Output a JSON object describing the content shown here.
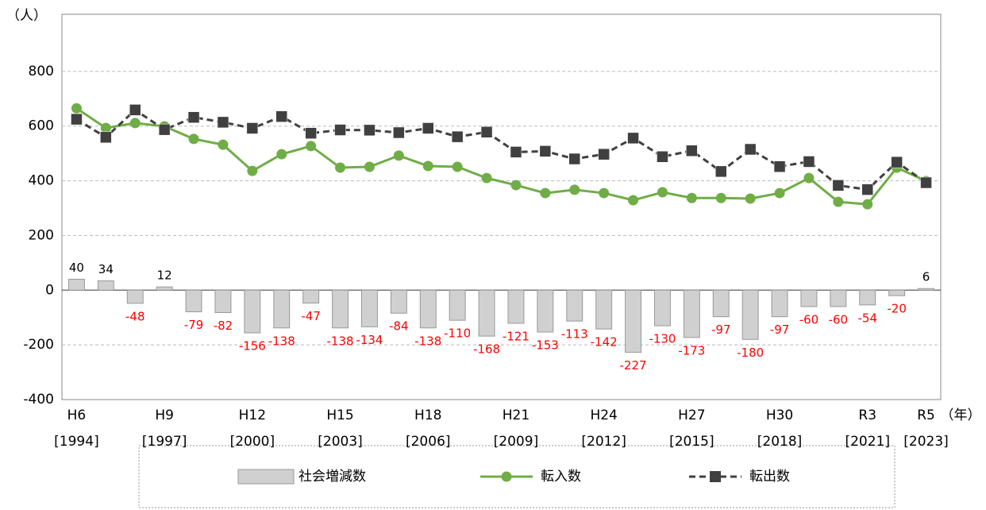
{
  "chart_data": {
    "type": "bar-line",
    "y_unit": "（人）",
    "x_unit": "（年）",
    "categories": [
      "H6",
      null,
      null,
      "H9",
      null,
      null,
      "H12",
      null,
      null,
      "H15",
      null,
      null,
      "H18",
      null,
      null,
      "H21",
      null,
      null,
      "H24",
      null,
      null,
      "H27",
      null,
      null,
      "H30",
      null,
      null,
      "R3",
      null,
      "R5"
    ],
    "category_years": [
      "[1994]",
      null,
      null,
      "[1997]",
      null,
      null,
      "[2000]",
      null,
      null,
      "[2003]",
      null,
      null,
      "[2006]",
      null,
      null,
      "[2009]",
      null,
      null,
      "[2012]",
      null,
      null,
      "[2015]",
      null,
      null,
      "[2018]",
      null,
      null,
      "[2021]",
      null,
      "[2023]"
    ],
    "series": [
      {
        "name": "社会増減数",
        "kind": "bar",
        "color": "#d0d0d0",
        "values": [
          40,
          34,
          -48,
          12,
          -79,
          -82,
          -156,
          -138,
          -47,
          -138,
          -134,
          -84,
          -138,
          -110,
          -168,
          -121,
          -153,
          -113,
          -142,
          -227,
          -130,
          -173,
          -97,
          -180,
          -97,
          -60,
          -60,
          -54,
          -20,
          6
        ]
      },
      {
        "name": "転入数",
        "kind": "line",
        "marker": "circle",
        "color": "#70ad47",
        "values": [
          665,
          593,
          611,
          599,
          553,
          532,
          436,
          497,
          527,
          448,
          451,
          492,
          454,
          451,
          410,
          384,
          355,
          367,
          355,
          329,
          358,
          337,
          337,
          335,
          355,
          410,
          323,
          314,
          448,
          399
        ]
      },
      {
        "name": "転出数",
        "kind": "line",
        "marker": "square",
        "dashed": true,
        "color": "#404040",
        "values": [
          625,
          559,
          659,
          587,
          632,
          614,
          592,
          635,
          574,
          586,
          585,
          576,
          592,
          561,
          578,
          505,
          508,
          480,
          497,
          556,
          488,
          510,
          434,
          515,
          452,
          470,
          383,
          368,
          468,
          393
        ]
      }
    ],
    "ylim": [
      -400,
      1000
    ],
    "yticks": [
      -400,
      -200,
      0,
      200,
      400,
      600,
      800
    ],
    "grid": true,
    "negative_label_color": "#ff0000",
    "legend": "bottom"
  }
}
